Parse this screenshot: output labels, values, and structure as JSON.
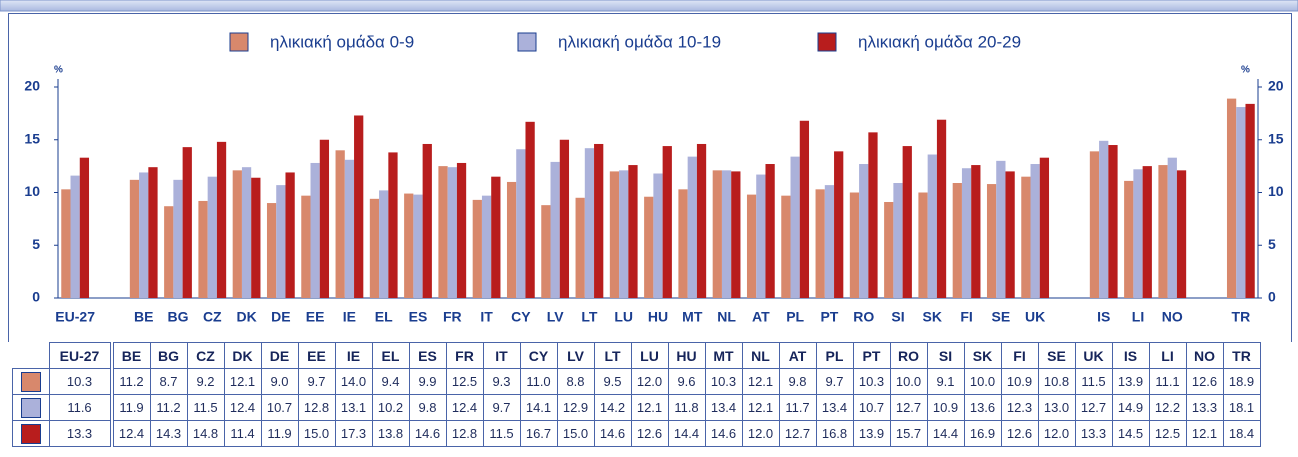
{
  "chart_data": {
    "type": "bar",
    "y_unit": "%",
    "categories": [
      "EU-27",
      null,
      "BE",
      "BG",
      "CZ",
      "DK",
      "DE",
      "EE",
      "IE",
      "EL",
      "ES",
      "FR",
      "IT",
      "CY",
      "LV",
      "LT",
      "LU",
      "HU",
      "MT",
      "NL",
      "AT",
      "PL",
      "PT",
      "RO",
      "SI",
      "SK",
      "FI",
      "SE",
      "UK",
      null,
      "IS",
      "LI",
      "NO",
      null,
      "TR"
    ],
    "series": [
      {
        "name": "ηλικιακή ομάδα 0-9",
        "color": "#d8886c",
        "values": [
          10.3,
          null,
          11.2,
          8.7,
          9.2,
          12.1,
          9.0,
          9.7,
          14.0,
          9.4,
          9.9,
          12.5,
          9.3,
          11.0,
          8.8,
          9.5,
          12.0,
          9.6,
          10.3,
          12.1,
          9.8,
          9.7,
          10.3,
          10.0,
          9.1,
          10.0,
          10.9,
          10.8,
          11.5,
          null,
          13.9,
          11.1,
          12.6,
          null,
          18.9
        ],
        "value_labels": [
          "10.3",
          null,
          "11.2",
          "8.7",
          "9.2",
          "12.1",
          "9.0",
          "9.7",
          "14.0",
          "9.4",
          "9.9",
          "12.5",
          "9.3",
          "11.0",
          "8.8",
          "9.5",
          "12.0",
          "9.6",
          "10.3",
          "12.1",
          "9.8",
          "9.7",
          "10.3",
          "10.0",
          "9.1",
          "10.0",
          "10.9",
          "10.8",
          "11.5",
          null,
          "13.9",
          "11.1",
          "12.6",
          null,
          "18.9"
        ]
      },
      {
        "name": "ηλικιακή ομάδα 10-19",
        "color": "#abb1da",
        "values": [
          11.6,
          null,
          11.9,
          11.2,
          11.5,
          12.4,
          10.7,
          12.8,
          13.1,
          10.2,
          9.8,
          12.4,
          9.7,
          14.1,
          12.9,
          14.2,
          12.1,
          11.8,
          13.4,
          12.1,
          11.7,
          13.4,
          10.7,
          12.7,
          10.9,
          13.6,
          12.3,
          13.0,
          12.7,
          null,
          14.9,
          12.2,
          13.3,
          null,
          18.1
        ],
        "value_labels": [
          "11.6",
          null,
          "11.9",
          "11.2",
          "11.5",
          "12.4",
          "10.7",
          "12.8",
          "13.1",
          "10.2",
          "9.8",
          "12.4",
          "9.7",
          "14.1",
          "12.9",
          "14.2",
          "12.1",
          "11.8",
          "13.4",
          "12.1",
          "11.7",
          "13.4",
          "10.7",
          "12.7",
          "10.9",
          "13.6",
          "12.3",
          "13.0",
          "12.7",
          null,
          "14.9",
          "12.2",
          "13.3",
          null,
          "18.1"
        ]
      },
      {
        "name": "ηλικιακή ομάδα 20-29",
        "color": "#b81d1d",
        "values": [
          13.3,
          null,
          12.4,
          14.3,
          14.8,
          11.4,
          11.9,
          15.0,
          17.3,
          13.8,
          14.6,
          12.8,
          11.5,
          16.7,
          15.0,
          14.6,
          12.6,
          14.4,
          14.6,
          12.0,
          12.7,
          16.8,
          13.9,
          15.7,
          14.4,
          16.9,
          12.6,
          12.0,
          13.3,
          null,
          14.5,
          12.5,
          12.1,
          null,
          18.4
        ],
        "value_labels": [
          "13.3",
          null,
          "12.4",
          "14.3",
          "14.8",
          "11.4",
          "11.9",
          "15.0",
          "17.3",
          "13.8",
          "14.6",
          "12.8",
          "11.5",
          "16.7",
          "15.0",
          "14.6",
          "12.6",
          "14.4",
          "14.6",
          "12.0",
          "12.7",
          "16.8",
          "13.9",
          "15.7",
          "14.4",
          "16.9",
          "12.6",
          "12.0",
          "13.3",
          null,
          "14.5",
          "12.5",
          "12.1",
          null,
          "18.4"
        ]
      }
    ],
    "ylim": [
      0,
      20
    ],
    "yticks": [
      0,
      5,
      10,
      15,
      20
    ],
    "y2lim": [
      0,
      20
    ],
    "y2ticks": [
      0,
      5,
      10,
      15,
      20
    ],
    "grid": false
  }
}
